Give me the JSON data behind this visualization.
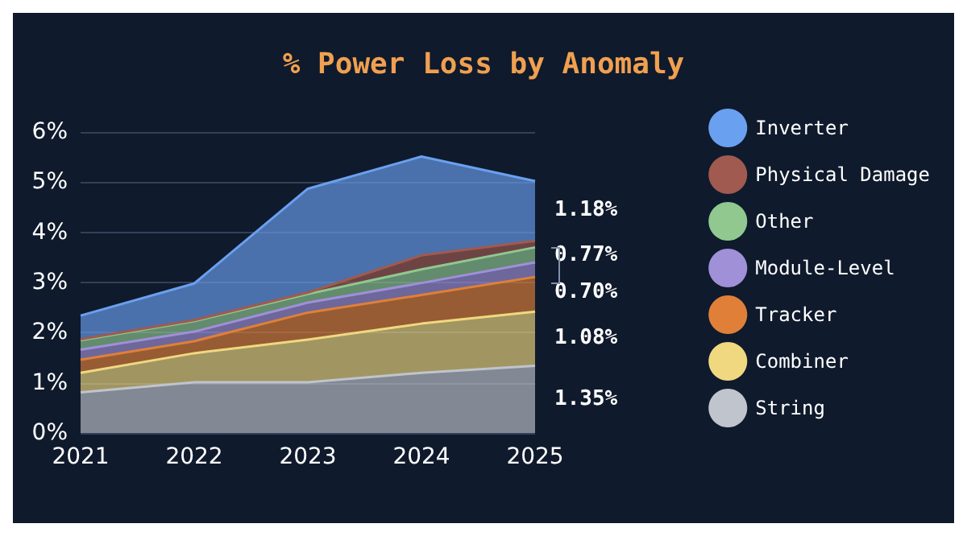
{
  "chart_data": {
    "type": "area",
    "title": "% Power Loss by Anomaly",
    "stacked": true,
    "categories": [
      "2021",
      "2022",
      "2023",
      "2024",
      "2025"
    ],
    "series": [
      {
        "name": "String",
        "color": "#c0c4cc",
        "values": [
          0.81,
          1.01,
          1.01,
          1.2,
          1.34
        ]
      },
      {
        "name": "Combiner",
        "color": "#f0d880",
        "values": [
          0.39,
          0.58,
          0.85,
          0.98,
          1.08
        ]
      },
      {
        "name": "Tracker",
        "color": "#e08038",
        "values": [
          0.26,
          0.24,
          0.54,
          0.57,
          0.69
        ]
      },
      {
        "name": "Module-Level",
        "color": "#a090d8",
        "values": [
          0.2,
          0.19,
          0.2,
          0.24,
          0.29
        ]
      },
      {
        "name": "Other",
        "color": "#90c890",
        "values": [
          0.19,
          0.21,
          0.17,
          0.27,
          0.3
        ]
      },
      {
        "name": "Physical Damage",
        "color": "#a05a50",
        "values": [
          0.02,
          0.02,
          0.03,
          0.28,
          0.13
        ]
      },
      {
        "name": "Inverter",
        "color": "#6aa0f0",
        "values": [
          0.47,
          0.73,
          2.07,
          1.97,
          1.19
        ]
      }
    ],
    "ylim": [
      0,
      6
    ],
    "yticks": [
      {
        "value": 0,
        "label": "0%"
      },
      {
        "value": 1,
        "label": "1%"
      },
      {
        "value": 2,
        "label": "2%"
      },
      {
        "value": 3,
        "label": "3%"
      },
      {
        "value": 4,
        "label": "4%"
      },
      {
        "value": 5,
        "label": "5%"
      },
      {
        "value": 6,
        "label": "6%"
      }
    ],
    "grid": "y",
    "legend": "right",
    "marker": "none",
    "annotations": [
      {
        "text": "1.18%",
        "x": "2025",
        "y": 4.45
      },
      {
        "text": "0.77%",
        "x": "2025",
        "y": 3.55
      },
      {
        "text": "0.70%",
        "x": "2025",
        "y": 2.8
      },
      {
        "text": "1.08%",
        "x": "2025",
        "y": 1.9
      },
      {
        "text": "1.35%",
        "x": "2025",
        "y": 0.68
      }
    ]
  }
}
